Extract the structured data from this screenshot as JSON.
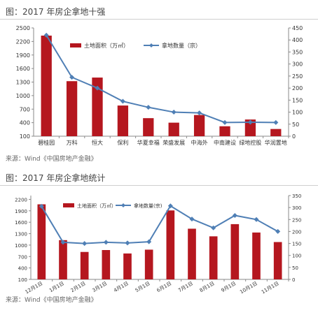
{
  "chart_data": [
    {
      "type": "bar",
      "title": "图：2017 年房企拿地十强",
      "source": "来源：Wind《中国房地产金融》",
      "categories": [
        "碧桂园",
        "万科",
        "恒大",
        "保利",
        "华夏幸福",
        "荣盛发展",
        "中海外",
        "中南建设",
        "绿地控股",
        "华润置地"
      ],
      "series": [
        {
          "name": "土地面积（万㎡）",
          "type": "bar",
          "axis": "left",
          "color": "#b5171f",
          "values": [
            2330,
            1320,
            1400,
            780,
            500,
            400,
            570,
            320,
            470,
            260
          ]
        },
        {
          "name": "拿地数量（宗）",
          "type": "line",
          "axis": "right",
          "color": "#4f7fb5",
          "values": [
            420,
            245,
            200,
            145,
            120,
            100,
            97,
            57,
            58,
            57
          ]
        }
      ],
      "left_axis": {
        "min": 100,
        "max": 2500,
        "ticks": [
          100,
          400,
          700,
          1000,
          1300,
          1600,
          1900,
          2200,
          2500
        ]
      },
      "right_axis": {
        "min": 0,
        "max": 450,
        "ticks": [
          0,
          50,
          100,
          150,
          200,
          250,
          300,
          350,
          400,
          450
        ]
      },
      "grid": false,
      "legend": "top-right"
    },
    {
      "type": "bar",
      "title": "图：2017 年房企拿地统计",
      "source": "来源：Wind《中国房地产金融》",
      "categories": [
        "12月1日",
        "1月1日",
        "2月1日",
        "3月1日",
        "4月1日",
        "5月1日",
        "6月1日",
        "7月1日",
        "8月1日",
        "9月1日",
        "10月1日",
        "11月1日"
      ],
      "series": [
        {
          "name": "土地面积（万㎡）",
          "type": "bar",
          "axis": "left",
          "color": "#b5171f",
          "values": [
            2070,
            1130,
            820,
            870,
            780,
            880,
            1910,
            1430,
            1230,
            1550,
            1330,
            1080
          ]
        },
        {
          "name": "拿地数量(宗)",
          "type": "line",
          "axis": "right",
          "color": "#4f7fb5",
          "values": [
            305,
            155,
            150,
            155,
            152,
            157,
            307,
            252,
            215,
            267,
            250,
            200
          ]
        }
      ],
      "left_axis": {
        "min": 100,
        "max": 2300,
        "ticks": [
          100,
          400,
          700,
          1000,
          1300,
          1600,
          1900,
          2200
        ]
      },
      "right_axis": {
        "min": 0,
        "max": 350,
        "ticks": [
          0,
          50,
          100,
          150,
          200,
          250,
          300,
          350
        ]
      },
      "grid": false,
      "legend": "top-right"
    }
  ]
}
